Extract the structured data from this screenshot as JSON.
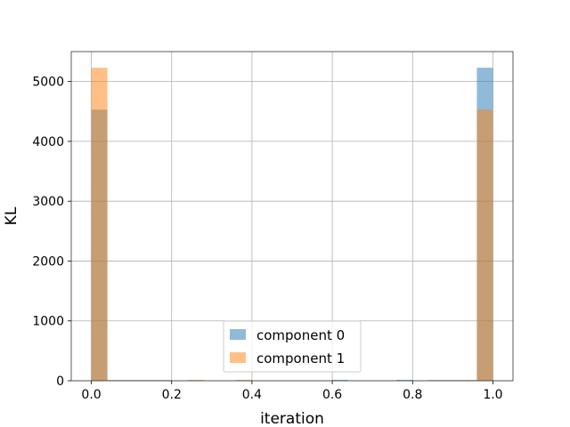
{
  "chart_data": {
    "type": "bar",
    "title": "",
    "xlabel": "iteration",
    "ylabel": "KL",
    "xlim": [
      -0.05,
      1.05
    ],
    "ylim": [
      0,
      5500
    ],
    "xticks": [
      "0.0",
      "0.2",
      "0.4",
      "0.6",
      "0.8",
      "1.0"
    ],
    "xtick_values": [
      0.0,
      0.2,
      0.4,
      0.6,
      0.8,
      1.0
    ],
    "yticks": [
      "0",
      "1000",
      "2000",
      "3000",
      "4000",
      "5000"
    ],
    "ytick_values": [
      0,
      1000,
      2000,
      3000,
      4000,
      5000
    ],
    "grid": true,
    "legend_position": "bottom-center",
    "bin_edges": [
      0.0,
      0.04,
      0.08,
      0.12,
      0.16,
      0.2,
      0.24,
      0.28,
      0.32,
      0.36,
      0.4,
      0.44,
      0.48,
      0.52,
      0.56,
      0.6,
      0.64,
      0.68,
      0.72,
      0.76,
      0.8,
      0.84,
      0.88,
      0.92,
      0.96,
      1.0
    ],
    "series": [
      {
        "name": "component 0",
        "color": "#1f77b4",
        "opacity": 0.5,
        "values": [
          4530,
          10,
          10,
          10,
          10,
          0,
          0,
          0,
          0,
          0,
          0,
          0,
          0,
          0,
          0,
          15,
          0,
          0,
          0,
          15,
          0,
          10,
          10,
          10,
          5230
        ]
      },
      {
        "name": "component 1",
        "color": "#ff7f0e",
        "opacity": 0.5,
        "values": [
          5230,
          10,
          10,
          10,
          10,
          0,
          15,
          0,
          0,
          15,
          0,
          0,
          0,
          0,
          0,
          0,
          0,
          0,
          0,
          0,
          0,
          10,
          10,
          10,
          4530
        ]
      }
    ]
  }
}
